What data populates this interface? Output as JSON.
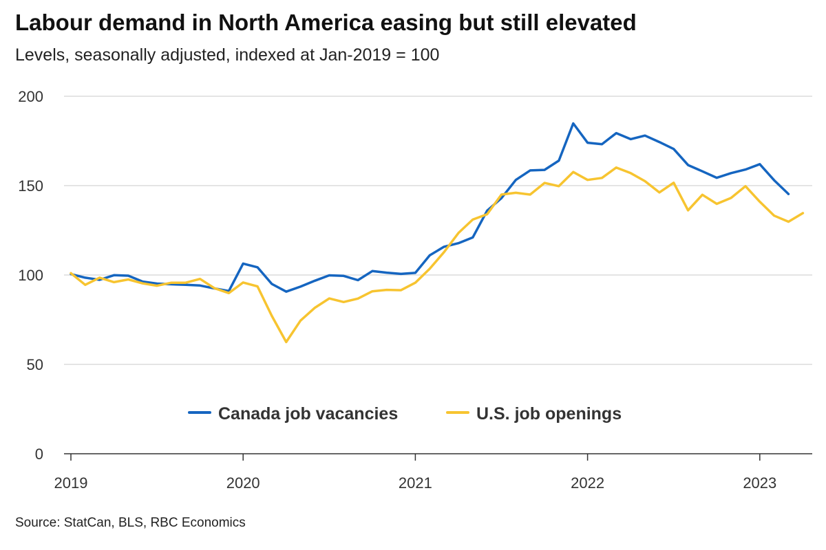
{
  "chart_data": {
    "type": "line",
    "title": "Labour demand in North America easing but still elevated",
    "subtitle": "Levels, seasonally adjusted, indexed at Jan-2019 = 100",
    "source": "Source: StatCan, BLS, RBC Economics",
    "xlabel": "",
    "ylabel": "",
    "ylim": [
      0,
      200
    ],
    "yticks": [
      0,
      50,
      100,
      150,
      200
    ],
    "xticks": [
      {
        "label": "2019",
        "index": 0
      },
      {
        "label": "2020",
        "index": 12
      },
      {
        "label": "2021",
        "index": 24
      },
      {
        "label": "2022",
        "index": 36
      },
      {
        "label": "2023",
        "index": 48
      }
    ],
    "x_start": "2019-01",
    "x_end": "2023-04",
    "x_unit": "month",
    "grid": true,
    "legend_position": "bottom-center",
    "series": [
      {
        "name": "Canada job vacancies",
        "color": "#1565C0",
        "values": [
          100.5,
          98.5,
          97.3,
          99.9,
          99.6,
          96.3,
          95.2,
          94.8,
          94.5,
          94.1,
          92.5,
          91.0,
          106.4,
          104.3,
          95.0,
          90.7,
          93.5,
          96.8,
          99.8,
          99.5,
          97.1,
          102.2,
          101.3,
          100.6,
          101.2,
          111.0,
          115.8,
          117.8,
          121.0,
          136.0,
          143.0,
          153.2,
          158.5,
          158.8,
          164.0,
          184.8,
          174.0,
          173.2,
          179.4,
          176.0,
          178.0,
          174.4,
          170.5,
          161.5,
          158.0,
          154.4,
          157.0,
          159.0,
          162.0,
          153.0,
          145.3
        ]
      },
      {
        "name": "U.S. job openings",
        "color": "#F7C430",
        "values": [
          101.0,
          94.5,
          98.5,
          96.0,
          97.5,
          95.3,
          94.0,
          95.7,
          95.7,
          97.8,
          92.6,
          89.9,
          95.8,
          93.6,
          77.1,
          62.5,
          74.5,
          81.7,
          86.9,
          84.9,
          86.8,
          90.9,
          91.7,
          91.5,
          95.7,
          103.5,
          112.8,
          123.5,
          131.0,
          134.0,
          145.0,
          146.0,
          145.0,
          151.5,
          149.7,
          157.6,
          153.2,
          154.3,
          160.1,
          157.0,
          152.5,
          146.2,
          151.6,
          136.2,
          144.9,
          139.8,
          143.1,
          149.7,
          141.0,
          133.2,
          129.8,
          134.6
        ]
      }
    ]
  }
}
